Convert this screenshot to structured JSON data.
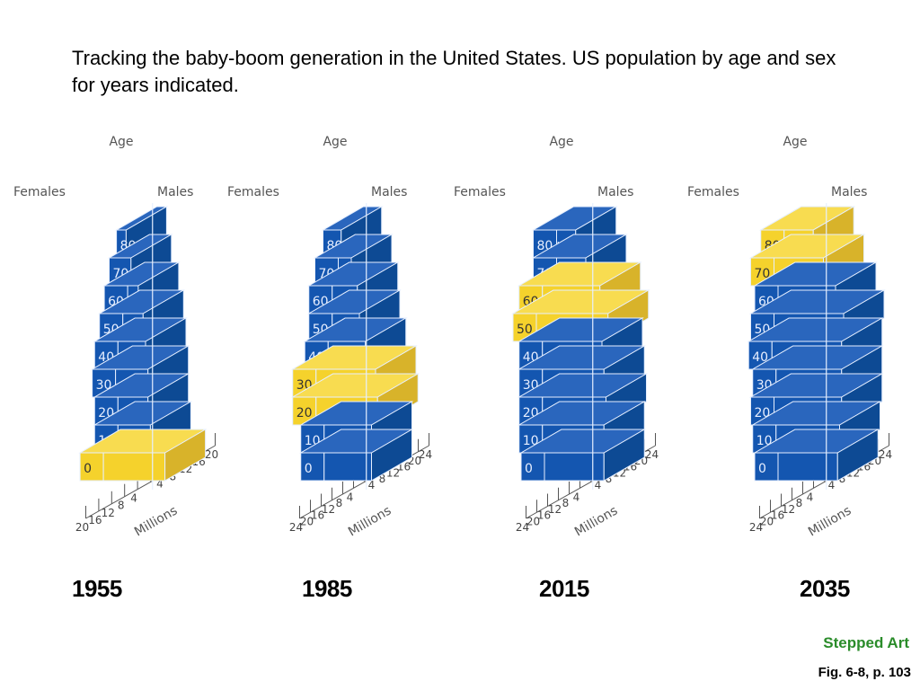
{
  "title": "Tracking the baby-boom generation in the United States.  US population by age and sex for years indicated.",
  "credit": "Stepped Art",
  "figure_ref": "Fig. 6-8, p. 103",
  "colors": {
    "blue_front": "#1456b0",
    "blue_side": "#0d4a94",
    "blue_top": "#2a66bd",
    "yellow_front": "#f5d22c",
    "yellow_side": "#d8b32a",
    "yellow_top": "#f8dc50",
    "edge": "#e6efff",
    "axis": "#555555",
    "credit_green": "#2a8c2a"
  },
  "chart_data": [
    {
      "type": "bar",
      "subtype": "population-pyramid-3d",
      "year": "1955",
      "ylabel": "Age",
      "xlabel": "Millions",
      "left_label": "Females",
      "right_label": "Males",
      "age_groups": [
        "0",
        "10",
        "20",
        "30",
        "40",
        "50",
        "60",
        "70",
        "80+"
      ],
      "xlim": [
        20,
        20
      ],
      "left_ticks": [
        "20",
        "16",
        "12",
        "8",
        "4"
      ],
      "right_ticks": [
        "4",
        "8",
        "12",
        "16",
        "20"
      ],
      "series": [
        {
          "name": "Females",
          "values": [
            17,
            11,
            11,
            12,
            11,
            9,
            7,
            5,
            2
          ]
        },
        {
          "name": "Males",
          "values": [
            18,
            12,
            11,
            11,
            10,
            9,
            7,
            4,
            2
          ]
        }
      ],
      "highlight": [
        "0"
      ]
    },
    {
      "type": "bar",
      "subtype": "population-pyramid-3d",
      "year": "1985",
      "ylabel": "Age",
      "xlabel": "Millions",
      "left_label": "Females",
      "right_label": "Males",
      "age_groups": [
        "0",
        "10",
        "20",
        "30",
        "40",
        "50",
        "60",
        "70",
        "80+"
      ],
      "xlim": [
        24,
        24
      ],
      "left_ticks": [
        "24",
        "20",
        "16",
        "12",
        "8",
        "4"
      ],
      "right_ticks": [
        "4",
        "8",
        "12",
        "16",
        "20",
        "24"
      ],
      "series": [
        {
          "name": "Females",
          "values": [
            17,
            17,
            21,
            21,
            15,
            13,
            13,
            10,
            6
          ]
        },
        {
          "name": "Males",
          "values": [
            18,
            18,
            21,
            20,
            15,
            12,
            11,
            8,
            3
          ]
        }
      ],
      "highlight": [
        "20",
        "30"
      ]
    },
    {
      "type": "bar",
      "subtype": "population-pyramid-3d",
      "year": "2015",
      "ylabel": "Age",
      "xlabel": "Millions",
      "left_label": "Females",
      "right_label": "Males",
      "age_groups": [
        "0",
        "10",
        "20",
        "30",
        "40",
        "50",
        "60",
        "70",
        "80+"
      ],
      "xlim": [
        24,
        24
      ],
      "left_ticks": [
        "24",
        "20",
        "16",
        "12",
        "8",
        "4"
      ],
      "right_ticks": [
        "4",
        "8",
        "12",
        "16",
        "20",
        "24"
      ],
      "series": [
        {
          "name": "Females",
          "values": [
            20,
            21,
            21,
            21,
            21,
            24,
            21,
            14,
            14
          ]
        },
        {
          "name": "Males",
          "values": [
            21,
            21,
            22,
            21,
            20,
            23,
            19,
            12,
            7
          ]
        }
      ],
      "highlight": [
        "50",
        "60"
      ]
    },
    {
      "type": "bar",
      "subtype": "population-pyramid-3d",
      "year": "2035",
      "ylabel": "Age",
      "xlabel": "Millions",
      "left_label": "Females",
      "right_label": "Males",
      "age_groups": [
        "0",
        "10",
        "20",
        "30",
        "40",
        "50",
        "60",
        "70",
        "80+"
      ],
      "xlim": [
        24,
        24
      ],
      "left_ticks": [
        "24",
        "20",
        "16",
        "12",
        "8",
        "4"
      ],
      "right_ticks": [
        "4",
        "8",
        "12",
        "16",
        "20",
        "24"
      ],
      "series": [
        {
          "name": "Females",
          "values": [
            20,
            21,
            22,
            21,
            23,
            22,
            20,
            22,
            17
          ]
        },
        {
          "name": "Males",
          "values": [
            21,
            22,
            23,
            23,
            23,
            24,
            20,
            14,
            9
          ]
        }
      ],
      "highlight": [
        "70",
        "80+"
      ]
    }
  ]
}
